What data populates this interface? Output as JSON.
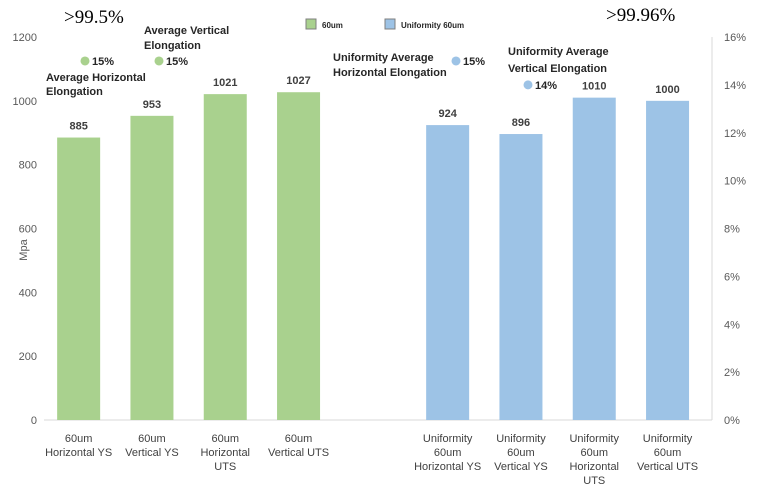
{
  "chart_data": {
    "type": "bar",
    "title": "",
    "ylabel": "Mpa",
    "ylim": [
      0,
      1200
    ],
    "y_ticks": [
      "0",
      "200",
      "400",
      "600",
      "800",
      "1000",
      "1200"
    ],
    "y2lim": [
      0,
      16
    ],
    "y2_ticks": [
      "0%",
      "2%",
      "4%",
      "6%",
      "8%",
      "10%",
      "12%",
      "14%",
      "16%"
    ],
    "grid": false,
    "legend_position": "top",
    "series": [
      {
        "name": "60um",
        "color": "#a9d18e",
        "categories": [
          [
            "60um",
            "Horizontal YS"
          ],
          [
            "60um",
            "Vertical YS"
          ],
          [
            "60um",
            "Horizontal",
            "UTS"
          ],
          [
            "60um",
            "Vertical UTS"
          ]
        ],
        "values": [
          885,
          953,
          1021,
          1027
        ],
        "value_labels": [
          "885",
          "953",
          "1021",
          "1027"
        ]
      },
      {
        "name": "Uniformity  60um",
        "color": "#9dc3e6",
        "categories": [
          [
            "Uniformity",
            "60um",
            "Horizontal YS"
          ],
          [
            "Uniformity",
            "60um",
            "Vertical YS"
          ],
          [
            "Uniformity",
            "60um",
            "Horizontal",
            "UTS"
          ],
          [
            "Uniformity",
            "60um",
            "Vertical UTS"
          ]
        ],
        "values": [
          924,
          896,
          1010,
          1000
        ],
        "value_labels": [
          "924",
          "896",
          "1010",
          "1000"
        ]
      }
    ],
    "elongation_points": [
      {
        "series": 0,
        "value": 15,
        "label": "15%",
        "caption": [
          "Average Horizontal",
          "Elongation"
        ]
      },
      {
        "series": 0,
        "value": 15,
        "label": "15%",
        "caption": [
          "Average Vertical",
          "Elongation"
        ]
      },
      {
        "series": 1,
        "value": 15,
        "label": "15%",
        "caption": [
          "Uniformity Average",
          "Horizontal  Elongation"
        ]
      },
      {
        "series": 1,
        "value": 14,
        "label": "14%",
        "caption": [
          "Uniformity Average",
          "Vertical  Elongation"
        ]
      }
    ],
    "density_labels": [
      ">99.5%",
      ">99.96%"
    ]
  }
}
